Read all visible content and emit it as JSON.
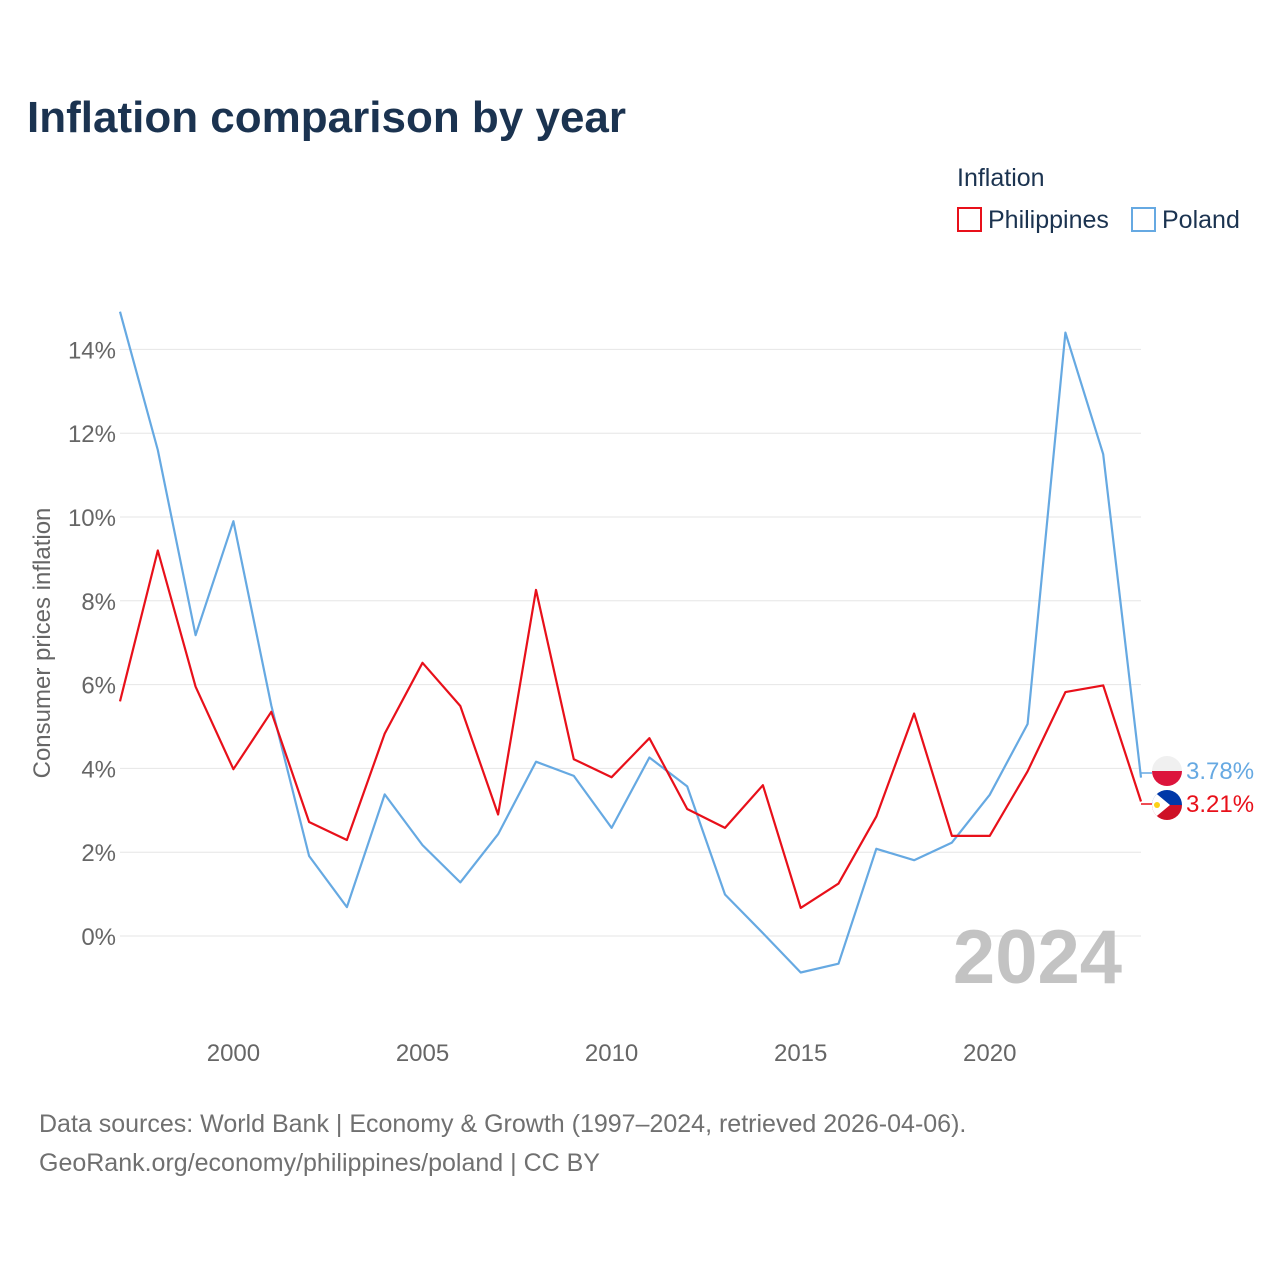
{
  "chart_data": {
    "type": "line",
    "title": "Inflation comparison by year",
    "xlabel": "",
    "ylabel": "Consumer prices inflation",
    "legend_title": "Inflation",
    "legend_position": "top-right",
    "x": [
      1997,
      1998,
      1999,
      2000,
      2001,
      2002,
      2003,
      2004,
      2005,
      2006,
      2007,
      2008,
      2009,
      2010,
      2011,
      2012,
      2013,
      2014,
      2015,
      2016,
      2017,
      2018,
      2019,
      2020,
      2021,
      2022,
      2023,
      2024
    ],
    "xlim": [
      1997,
      2024
    ],
    "ylim": [
      -2,
      15
    ],
    "x_ticks": [
      2000,
      2005,
      2010,
      2015,
      2020
    ],
    "x_tick_labels": [
      "2000",
      "2005",
      "2010",
      "2015",
      "2020"
    ],
    "y_ticks": [
      0,
      2,
      4,
      6,
      8,
      10,
      12,
      14
    ],
    "y_tick_labels": [
      "0%",
      "2%",
      "4%",
      "6%",
      "8%",
      "10%",
      "12%",
      "14%"
    ],
    "grid": true,
    "series": [
      {
        "name": "Philippines",
        "color": "#e8101a",
        "values": [
          5.6,
          9.2,
          5.95,
          3.98,
          5.35,
          2.72,
          2.29,
          4.83,
          6.52,
          5.49,
          2.9,
          8.26,
          4.22,
          3.79,
          4.72,
          3.03,
          2.58,
          3.6,
          0.67,
          1.25,
          2.85,
          5.31,
          2.39,
          2.39,
          3.93,
          5.82,
          5.98,
          3.21
        ],
        "end_label": "3.21%"
      },
      {
        "name": "Poland",
        "color": "#66a9e2",
        "values": [
          14.9,
          11.6,
          7.18,
          9.9,
          5.5,
          1.91,
          0.69,
          3.38,
          2.17,
          1.28,
          2.43,
          4.16,
          3.82,
          2.58,
          4.26,
          3.57,
          0.99,
          0.07,
          -0.87,
          -0.66,
          2.08,
          1.81,
          2.23,
          3.37,
          5.06,
          14.4,
          11.5,
          3.78
        ],
        "end_label": "3.78%"
      }
    ],
    "annotations": {
      "year_watermark": "2024"
    },
    "sources_line1": "Data sources: World Bank | Economy & Growth (1997–2024, retrieved 2026-04-06).",
    "sources_line2": "GeoRank.org/economy/philippines/poland | CC BY",
    "flag_colors": {
      "philippines": {
        "blue": "#0038a8",
        "red": "#ce1126",
        "white": "#ffffff",
        "sun": "#fcd116"
      },
      "poland": {
        "white": "#f0f0f0",
        "red": "#dc143c"
      }
    }
  }
}
